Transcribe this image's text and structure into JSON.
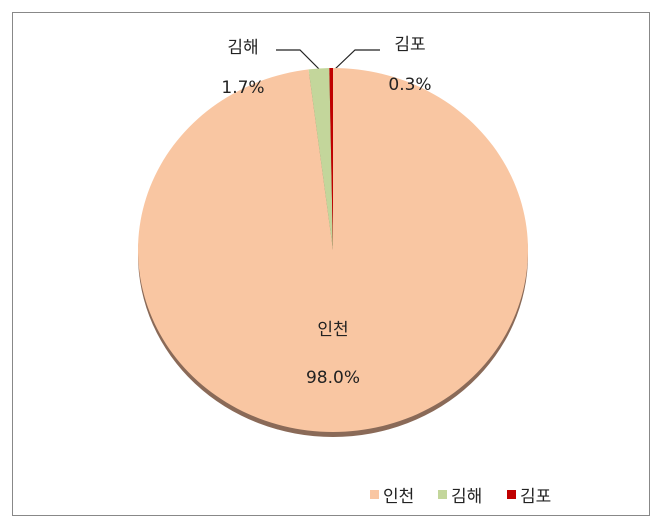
{
  "chart_data": {
    "type": "pie",
    "categories": [
      "인천",
      "김해",
      "김포"
    ],
    "values": [
      98.0,
      1.7,
      0.3
    ],
    "value_labels": [
      "98.0%",
      "1.7%",
      "0.3%"
    ],
    "colors": [
      "#f9c6a2",
      "#c3d69b",
      "#c00000"
    ],
    "legend": "bottom-right"
  }
}
